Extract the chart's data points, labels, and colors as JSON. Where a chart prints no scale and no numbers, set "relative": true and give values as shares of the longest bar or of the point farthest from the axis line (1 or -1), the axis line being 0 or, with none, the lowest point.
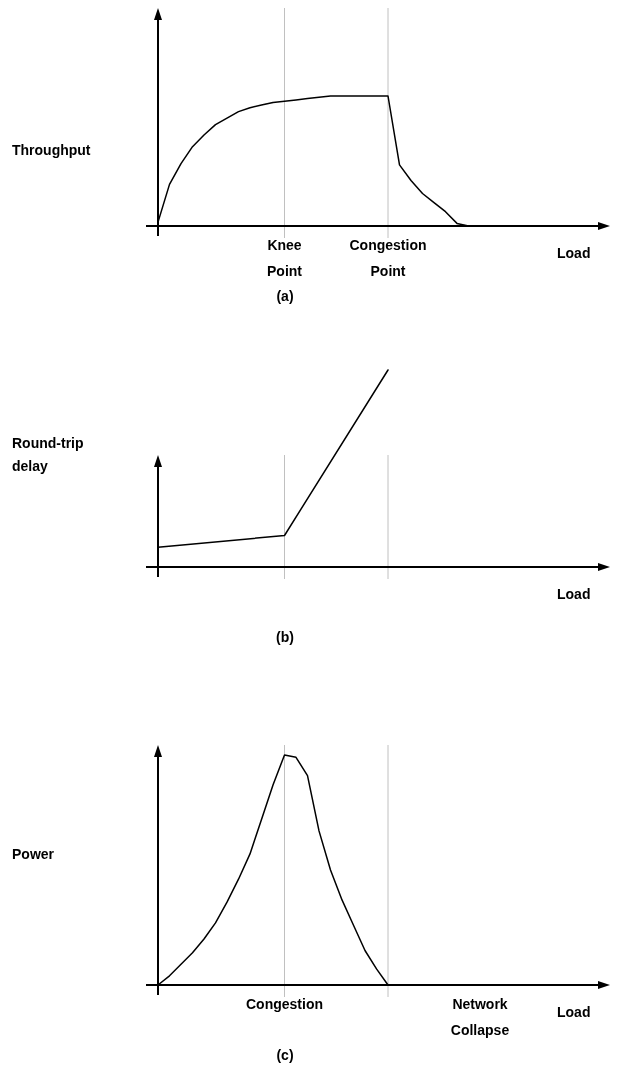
{
  "chart_data": [
    {
      "type": "line",
      "relative": true,
      "ylabel": "Throughput",
      "xlabel": "Load",
      "annotations": [
        "(a)"
      ],
      "categories": [
        null,
        null,
        null,
        null,
        null,
        null,
        null,
        null,
        null,
        null,
        null,
        "Knee Point",
        null,
        null,
        null,
        null,
        null,
        null,
        null,
        null,
        "Congestion Point",
        null,
        null,
        null,
        null,
        null,
        null,
        null,
        null,
        null,
        null,
        null,
        null,
        null,
        null,
        null,
        null,
        null,
        null
      ],
      "series": [
        {
          "color": "#000000",
          "values": [
            0.03,
            0.32,
            0.48,
            0.61,
            0.7,
            0.78,
            0.83,
            0.88,
            0.91,
            0.93,
            0.95,
            0.96,
            0.97,
            0.98,
            0.99,
            1,
            1,
            1,
            1,
            1,
            1,
            0.47,
            0.35,
            0.25,
            0.18,
            0.11,
            0.02,
            0,
            null,
            null,
            null,
            null,
            null,
            null,
            null,
            null,
            null,
            null,
            null
          ]
        }
      ],
      "ref_lines": [
        {
          "axis": "x",
          "value": "Knee Point",
          "color": "#c0c0c0"
        },
        {
          "axis": "x",
          "value": "Congestion Point",
          "color": "#c0c0c0"
        }
      ]
    },
    {
      "type": "line",
      "relative": true,
      "ylabel": "Round-trip delay",
      "xlabel": "Load",
      "annotations": [
        "(b)"
      ],
      "categories": [
        null,
        null,
        null,
        null,
        null,
        null,
        null,
        null,
        null,
        null,
        null,
        null,
        null,
        null,
        null,
        null,
        null,
        null,
        null,
        null,
        null,
        null,
        null,
        null,
        null,
        null,
        null,
        null,
        null,
        null,
        null,
        null,
        null,
        null,
        null,
        null,
        null,
        null,
        null
      ],
      "series": [
        {
          "color": "#000000",
          "values": [
            0.1,
            null,
            null,
            null,
            null,
            null,
            null,
            null,
            null,
            null,
            null,
            0.16,
            null,
            null,
            null,
            null,
            null,
            null,
            null,
            null,
            1,
            null,
            null,
            null,
            null,
            null,
            null,
            null,
            null,
            null,
            null,
            null,
            null,
            null,
            null,
            null,
            null,
            null,
            null
          ]
        }
      ]
    },
    {
      "type": "line",
      "relative": true,
      "ylabel": "Power",
      "xlabel": "Load",
      "annotations": [
        "(c)"
      ],
      "categories": [
        null,
        null,
        null,
        null,
        null,
        null,
        null,
        null,
        null,
        null,
        null,
        "Congestion",
        null,
        null,
        null,
        null,
        null,
        null,
        null,
        null,
        null,
        null,
        null,
        null,
        null,
        null,
        null,
        null,
        "Network Collapse",
        null,
        null,
        null,
        null,
        null,
        null,
        null,
        null,
        null,
        null
      ],
      "series": [
        {
          "color": "#000000",
          "values": [
            0,
            0.04,
            0.09,
            0.14,
            0.2,
            0.27,
            0.36,
            0.46,
            0.57,
            0.72,
            0.87,
            1,
            0.99,
            0.91,
            0.67,
            0.5,
            0.37,
            0.26,
            0.15,
            0.07,
            0,
            null,
            null,
            null,
            null,
            null,
            null,
            null,
            null,
            null,
            null,
            null,
            null,
            null,
            null,
            null,
            null,
            null,
            null
          ]
        }
      ]
    }
  ]
}
